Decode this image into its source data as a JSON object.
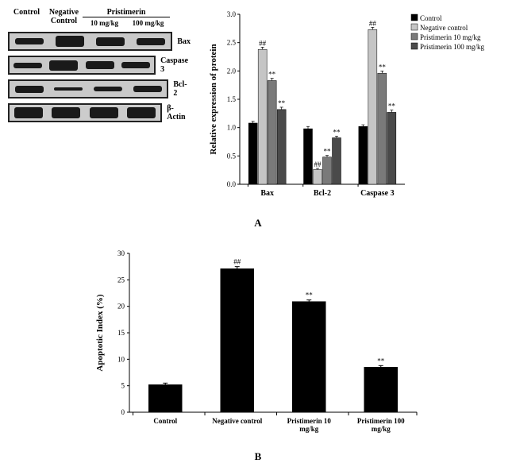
{
  "panelA": {
    "blot": {
      "header": {
        "control": "Control",
        "negative": "Negative\nControl",
        "group": "Pristimerin",
        "dose10": "10 mg/kg",
        "dose100": "100 mg/kg"
      },
      "rows": [
        {
          "label": "Bax",
          "bands": [
            8,
            14,
            11,
            9
          ],
          "bg": "#c9c9c9"
        },
        {
          "label": "Caspase 3",
          "bands": [
            7,
            13,
            10,
            8
          ],
          "bg": "#c9c9c9"
        },
        {
          "label": "Bcl-2",
          "bands": [
            9,
            4,
            6,
            8
          ],
          "bg": "#c9c9c9"
        },
        {
          "label": "β-Actin",
          "bands": [
            14,
            14,
            14,
            14
          ],
          "bg": "#cccccc"
        }
      ]
    },
    "chart": {
      "type": "bar",
      "ylabel": "Relative expression of protein",
      "ylim": [
        0,
        3.0
      ],
      "ytick_step": 0.5,
      "groups": [
        "Bax",
        "Bcl-2",
        "Caspase 3"
      ],
      "series": [
        {
          "name": "Control",
          "color": "#000000"
        },
        {
          "name": "Negative control",
          "color": "#c5c5c5"
        },
        {
          "name": "Pristimerin 10 mg/kg",
          "color": "#7a7a7a"
        },
        {
          "name": "Pristimerin 100 mg/kg",
          "color": "#4a4a4a"
        }
      ],
      "values": {
        "Bax": [
          1.08,
          2.38,
          1.83,
          1.32
        ],
        "Bcl-2": [
          0.98,
          0.26,
          0.48,
          0.82
        ],
        "Caspase 3": [
          1.02,
          2.73,
          1.96,
          1.27
        ]
      },
      "errors": {
        "Bax": [
          0.03,
          0.04,
          0.04,
          0.04
        ],
        "Bcl-2": [
          0.04,
          0.02,
          0.03,
          0.03
        ],
        "Caspase 3": [
          0.03,
          0.04,
          0.04,
          0.04
        ]
      },
      "annotations": {
        "Bax": [
          "",
          "##",
          "**",
          "**"
        ],
        "Bcl-2": [
          "",
          "##",
          "**",
          "**"
        ],
        "Caspase 3": [
          "",
          "##",
          "**",
          "**"
        ]
      }
    },
    "letter": "A"
  },
  "panelB": {
    "chart": {
      "type": "bar",
      "ylabel": "Apoptotic Index (%)",
      "ylim": [
        0,
        30
      ],
      "ytick_step": 5,
      "categories": [
        "Control",
        "Negative control",
        "Pristimerin 10\nmg/kg",
        "Pristimerin 100\nmg/kg"
      ],
      "values": [
        5.2,
        27.1,
        20.9,
        8.5
      ],
      "errors": [
        0.3,
        0.4,
        0.3,
        0.3
      ],
      "annotations": [
        "",
        "##",
        "**",
        "**"
      ],
      "bar_color": "#000000"
    },
    "letter": "B"
  }
}
